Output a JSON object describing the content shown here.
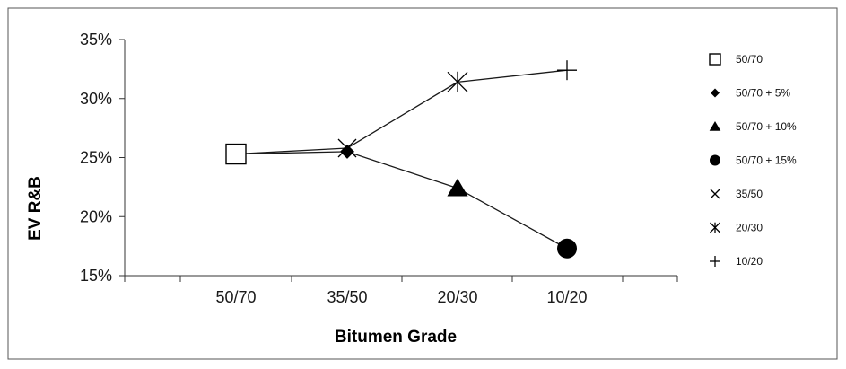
{
  "chart_data": {
    "type": "line",
    "title": "",
    "xlabel": "Bitumen Grade",
    "ylabel": "EV R&B",
    "categories": [
      "50/70",
      "35/50",
      "20/30",
      "10/20"
    ],
    "ylim": [
      15,
      35
    ],
    "yticks": [
      15,
      20,
      25,
      30,
      35
    ],
    "ytick_labels": [
      "15%",
      "20%",
      "25%",
      "30%",
      "35%"
    ],
    "grid": false,
    "legend_position": "right",
    "series": [
      {
        "name": "50/70",
        "marker": "square-open",
        "points": [
          {
            "x": "50/70",
            "y": 25.3
          }
        ]
      },
      {
        "name": "50/70 + 5%",
        "marker": "diamond-filled",
        "points": [
          {
            "x": "35/50",
            "y": 25.5
          }
        ]
      },
      {
        "name": "50/70 + 10%",
        "marker": "triangle-filled",
        "points": [
          {
            "x": "20/30",
            "y": 22.4
          }
        ]
      },
      {
        "name": "50/70 + 15%",
        "marker": "circle-filled",
        "points": [
          {
            "x": "10/20",
            "y": 17.3
          }
        ]
      },
      {
        "name": "35/50",
        "marker": "x",
        "points": [
          {
            "x": "35/50",
            "y": 25.8
          }
        ]
      },
      {
        "name": "20/30",
        "marker": "asterisk",
        "points": [
          {
            "x": "20/30",
            "y": 31.4
          }
        ]
      },
      {
        "name": "10/20",
        "marker": "plus",
        "points": [
          {
            "x": "10/20",
            "y": 32.4
          }
        ]
      }
    ],
    "connecting_lines": [
      {
        "name": "",
        "points": [
          {
            "x": "50/70",
            "y": 25.3
          },
          {
            "x": "35/50",
            "y": 25.8
          },
          {
            "x": "20/30",
            "y": 31.4
          },
          {
            "x": "10/20",
            "y": 32.4
          }
        ]
      },
      {
        "name": "",
        "points": [
          {
            "x": "50/70",
            "y": 25.3
          },
          {
            "x": "35/50",
            "y": 25.5
          },
          {
            "x": "20/30",
            "y": 22.4
          },
          {
            "x": "10/20",
            "y": 17.3
          }
        ]
      }
    ]
  },
  "colors": {
    "line": "#1a1a1a",
    "marker": "#000000",
    "frame": "#555555"
  }
}
